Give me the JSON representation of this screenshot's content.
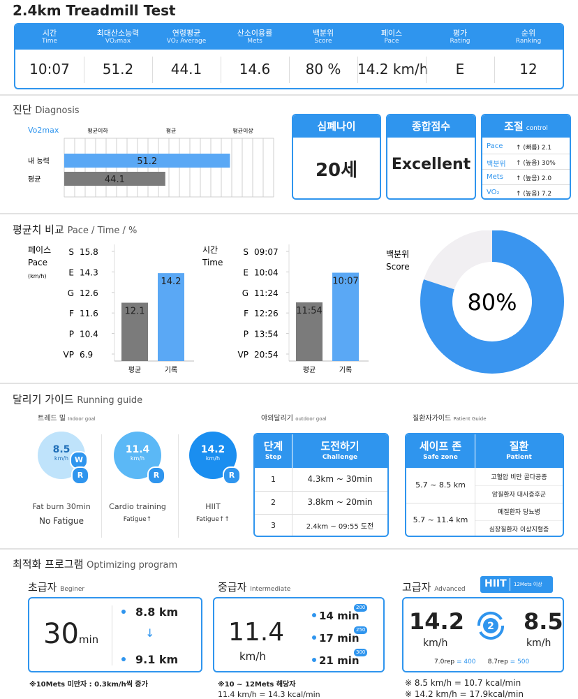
{
  "header": {
    "title": "2.4km Treadmill Test"
  },
  "summary": {
    "columns": [
      {
        "ko": "시간",
        "en": "Time",
        "value": "10:07"
      },
      {
        "ko": "최대산소능력",
        "en": "VO₂max",
        "value": "51.2"
      },
      {
        "ko": "연령평균",
        "en": "VO₂ Average",
        "value": "44.1"
      },
      {
        "ko": "산소이용률",
        "en": "Mets",
        "value": "14.6"
      },
      {
        "ko": "백분위",
        "en": "Score",
        "value": "80 %"
      },
      {
        "ko": "페이스",
        "en": "Pace",
        "value": "14.2 km/h"
      },
      {
        "ko": "평가",
        "en": "Rating",
        "value": "E"
      },
      {
        "ko": "순위",
        "en": "Ranking",
        "value": "12"
      }
    ]
  },
  "diagnosis": {
    "title": "진단",
    "subtitle": "Diagnosis",
    "vo2max": {
      "label": "Vo2max",
      "bands": [
        "평균이하",
        "평균",
        "평균이상"
      ],
      "xlim": [
        33,
        56
      ],
      "rows": [
        {
          "name": "내 능력",
          "value": 51.2,
          "color": "#5aa8f5"
        },
        {
          "name": "평균",
          "value": 44.1,
          "color": "#7b7b7b"
        }
      ]
    },
    "cards": [
      {
        "title": "심폐나이",
        "value": "20세"
      },
      {
        "title": "종합점수",
        "value": "Excellent"
      }
    ],
    "control": {
      "title": "조절",
      "subtitle": "control",
      "rows": [
        {
          "name": "Pace",
          "change": "↑ (빠름) 2.1"
        },
        {
          "name": "백분위",
          "change": "↑ (높음) 30%"
        },
        {
          "name": "Mets",
          "change": "↑ (높음) 2.0"
        },
        {
          "name": "VO₂",
          "change": "↑ (높음) 7.2"
        }
      ]
    }
  },
  "comparison": {
    "title": "평균치 비교",
    "subtitle": "Pace / Time / %",
    "pace": {
      "label": "페이스",
      "label_en": "Pace",
      "unit": "(km/h)",
      "ticks": [
        {
          "grade": "S",
          "value": 15.8
        },
        {
          "grade": "E",
          "value": 14.3
        },
        {
          "grade": "G",
          "value": 12.6
        },
        {
          "grade": "F",
          "value": 11.6
        },
        {
          "grade": "P",
          "value": 10.4
        },
        {
          "grade": "VP",
          "value": 6.9
        }
      ],
      "categories": [
        "평균",
        "기록"
      ],
      "values": [
        12.1,
        14.2
      ],
      "colors": [
        "#7b7b7b",
        "#5aa8f5"
      ]
    },
    "time": {
      "label": "시간",
      "label_en": "Time",
      "ticks": [
        {
          "grade": "S",
          "value": "09:07"
        },
        {
          "grade": "E",
          "value": "10:04"
        },
        {
          "grade": "G",
          "value": "11:24"
        },
        {
          "grade": "F",
          "value": "12:26"
        },
        {
          "grade": "P",
          "value": "13:54"
        },
        {
          "grade": "VP",
          "value": "20:54"
        }
      ],
      "categories": [
        "평균",
        "기록"
      ],
      "values": [
        "11:54",
        "10:07"
      ],
      "colors": [
        "#7b7b7b",
        "#5aa8f5"
      ]
    },
    "score": {
      "type": "pie",
      "label": "백분위",
      "label_en": "Score",
      "value": 80,
      "value_label": "80%",
      "colors": [
        "#3a95ef",
        "#f1eff2"
      ]
    }
  },
  "running_guide": {
    "title": "달리기 가이드",
    "subtitle": "Running guide",
    "indoor": {
      "title": "트레드 밀",
      "subtitle": "Indoor goal",
      "items": [
        {
          "speed": "8.5",
          "unit": "km/h",
          "badges": [
            "W",
            "R"
          ],
          "name": "Fat burn 30min",
          "fatigue": "No Fatigue"
        },
        {
          "speed": "11.4",
          "unit": "km/h",
          "badges": [
            "R"
          ],
          "name": "Cardio training",
          "fatigue": "Fatigue↑"
        },
        {
          "speed": "14.2",
          "unit": "km/h",
          "badges": [
            "R"
          ],
          "name": "HIIT",
          "fatigue": "Fatigue↑↑"
        }
      ]
    },
    "outdoor": {
      "title": "야외달리기",
      "subtitle": "outdoor goal",
      "header": {
        "step": "단계",
        "step_en": "Step",
        "challenge": "도전하기",
        "challenge_en": "Challenge"
      },
      "rows": [
        {
          "step": "1",
          "challenge": "4.3km ~ 30min"
        },
        {
          "step": "2",
          "challenge": "3.8km ~ 20min"
        },
        {
          "step": "3",
          "challenge": "2.4km ~ 09:55 도전"
        }
      ]
    },
    "patient": {
      "title": "질환자가이드",
      "subtitle": "Patient Guide",
      "header": {
        "zone": "세이프 존",
        "zone_en": "Safe zone",
        "patient": "질환",
        "patient_en": "Patient"
      },
      "rows": [
        {
          "zone": "5.7 ~ 8.5 km",
          "patients": [
            "고혈압 비만 골다공증",
            "암질환자 대사증후군"
          ]
        },
        {
          "zone": "5.7 ~ 11.4 km",
          "patients": [
            "폐질환자 당뇨병",
            "심장질환자 이상지혈증"
          ]
        }
      ]
    }
  },
  "optimizing": {
    "title": "최적화 프로그램",
    "subtitle": "Optimizing program",
    "beginner": {
      "title": "초급자",
      "subtitle": "Beginer",
      "time": "30",
      "time_unit": "min",
      "from": "8.8 km",
      "to": "9.1 km",
      "note": "※10Mets 미만자 : 0.3km/h씩 증가"
    },
    "intermediate": {
      "title": "중급자",
      "subtitle": "Intermediate",
      "speed": "11.4",
      "unit": "km/h",
      "durations": [
        {
          "time": "14 min",
          "kcal": "200"
        },
        {
          "time": "17 min",
          "kcal": "250"
        },
        {
          "time": "21 min",
          "kcal": "300"
        }
      ],
      "notes": [
        "※10 ~ 12Mets 해당자",
        "11.4 km/h = 14.3 kcal/min"
      ]
    },
    "advanced": {
      "title": "고급자",
      "subtitle": "Advanced",
      "badge": "HIIT",
      "badge_note": "12Mets 이상",
      "high": {
        "speed": "14.2",
        "unit": "km/h"
      },
      "low": {
        "speed": "8.5",
        "unit": "km/h"
      },
      "sets": "2",
      "reps": [
        {
          "rep": "7.0rep",
          "value": "= 400"
        },
        {
          "rep": "8.7rep",
          "value": "= 500"
        }
      ],
      "notes": [
        "※ 8.5 km/h = 10.7 kcal/min",
        "※ 14.2 km/h = 17.9kcal/min"
      ]
    }
  }
}
